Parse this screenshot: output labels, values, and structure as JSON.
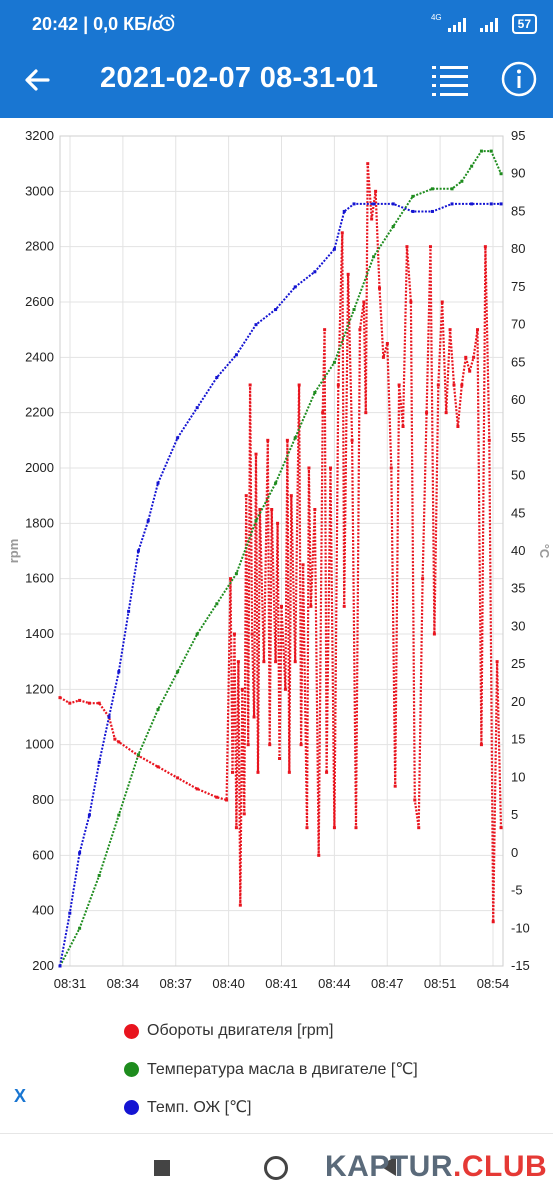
{
  "status_bar": {
    "time": "20:42",
    "speed": "| 0,0 КБ/с",
    "network": "4G",
    "battery": "57",
    "icons": [
      "alarm-icon",
      "signal-icon",
      "signal-icon",
      "battery-icon"
    ]
  },
  "app_bar": {
    "title": "2021-02-07 08-31-01",
    "icons": [
      "back-arrow-icon",
      "list-icon",
      "info-icon"
    ]
  },
  "chart_data": {
    "type": "scatter",
    "x_ticks": [
      "08:31",
      "08:34",
      "08:37",
      "08:40",
      "08:41",
      "08:44",
      "08:47",
      "08:51",
      "08:54"
    ],
    "y_left": {
      "label": "rpm",
      "min": 200,
      "max": 3200,
      "ticks": [
        200,
        400,
        600,
        800,
        1000,
        1200,
        1400,
        1600,
        1800,
        2000,
        2200,
        2400,
        2600,
        2800,
        3000,
        3200
      ]
    },
    "y_right": {
      "label": "°C",
      "min": -15,
      "max": 95,
      "ticks": [
        -15,
        -10,
        -5,
        0,
        5,
        10,
        15,
        20,
        25,
        30,
        35,
        40,
        45,
        50,
        55,
        60,
        65,
        70,
        75,
        80,
        85,
        90,
        95
      ]
    },
    "grid": true,
    "legend_position": "bottom",
    "series": [
      {
        "name": "Обороты двигателя [rpm]",
        "color": "#e8141e",
        "axis": "left",
        "points": [
          [
            0,
            1170
          ],
          [
            0.5,
            1150
          ],
          [
            1,
            1160
          ],
          [
            1.5,
            1150
          ],
          [
            2,
            1150
          ],
          [
            2.5,
            1100
          ],
          [
            2.8,
            1020
          ],
          [
            3,
            1010
          ],
          [
            4,
            960
          ],
          [
            5,
            920
          ],
          [
            6,
            880
          ],
          [
            7,
            840
          ],
          [
            8,
            810
          ],
          [
            8.5,
            800
          ],
          [
            8.7,
            1600
          ],
          [
            8.8,
            900
          ],
          [
            8.9,
            1400
          ],
          [
            9,
            700
          ],
          [
            9.1,
            1300
          ],
          [
            9.2,
            420
          ],
          [
            9.3,
            1200
          ],
          [
            9.4,
            750
          ],
          [
            9.5,
            1900
          ],
          [
            9.6,
            1000
          ],
          [
            9.7,
            2300
          ],
          [
            9.8,
            1400
          ],
          [
            9.9,
            1100
          ],
          [
            10,
            2050
          ],
          [
            10.1,
            900
          ],
          [
            10.2,
            1850
          ],
          [
            10.4,
            1300
          ],
          [
            10.6,
            2100
          ],
          [
            10.7,
            1000
          ],
          [
            10.8,
            1850
          ],
          [
            11,
            1300
          ],
          [
            11.1,
            1800
          ],
          [
            11.2,
            950
          ],
          [
            11.3,
            1500
          ],
          [
            11.5,
            1200
          ],
          [
            11.6,
            2100
          ],
          [
            11.7,
            900
          ],
          [
            11.8,
            1900
          ],
          [
            12,
            1300
          ],
          [
            12.2,
            2300
          ],
          [
            12.3,
            1000
          ],
          [
            12.4,
            1650
          ],
          [
            12.6,
            700
          ],
          [
            12.7,
            2000
          ],
          [
            12.8,
            1500
          ],
          [
            13,
            1850
          ],
          [
            13.2,
            600
          ],
          [
            13.4,
            2200
          ],
          [
            13.5,
            2500
          ],
          [
            13.6,
            900
          ],
          [
            13.8,
            2000
          ],
          [
            14,
            700
          ],
          [
            14.2,
            2300
          ],
          [
            14.4,
            2850
          ],
          [
            14.5,
            1500
          ],
          [
            14.7,
            2700
          ],
          [
            14.9,
            2100
          ],
          [
            15.1,
            700
          ],
          [
            15.3,
            2500
          ],
          [
            15.5,
            2600
          ],
          [
            15.6,
            2200
          ],
          [
            15.7,
            3100
          ],
          [
            15.9,
            2900
          ],
          [
            16.1,
            3000
          ],
          [
            16.3,
            2650
          ],
          [
            16.5,
            2400
          ],
          [
            16.7,
            2450
          ],
          [
            16.9,
            2000
          ],
          [
            17.1,
            850
          ],
          [
            17.3,
            2300
          ],
          [
            17.5,
            2150
          ],
          [
            17.7,
            2800
          ],
          [
            17.9,
            2600
          ],
          [
            18.1,
            800
          ],
          [
            18.3,
            700
          ],
          [
            18.5,
            1600
          ],
          [
            18.7,
            2200
          ],
          [
            18.9,
            2800
          ],
          [
            19.1,
            1400
          ],
          [
            19.3,
            2300
          ],
          [
            19.5,
            2600
          ],
          [
            19.7,
            2200
          ],
          [
            19.9,
            2500
          ],
          [
            20.1,
            2300
          ],
          [
            20.3,
            2150
          ],
          [
            20.5,
            2300
          ],
          [
            20.7,
            2400
          ],
          [
            20.9,
            2350
          ],
          [
            21.1,
            2400
          ],
          [
            21.3,
            2500
          ],
          [
            21.5,
            1000
          ],
          [
            21.7,
            2800
          ],
          [
            21.9,
            2100
          ],
          [
            22.1,
            360
          ],
          [
            22.3,
            1300
          ],
          [
            22.5,
            700
          ]
        ]
      },
      {
        "name": "Температура масла в двигателе [°C]",
        "color": "#1e8c1e",
        "axis": "right",
        "points": [
          [
            0,
            -15
          ],
          [
            1,
            -10
          ],
          [
            2,
            -3
          ],
          [
            3,
            5
          ],
          [
            4,
            13
          ],
          [
            5,
            19
          ],
          [
            6,
            24
          ],
          [
            7,
            29
          ],
          [
            8,
            33
          ],
          [
            9,
            37
          ],
          [
            10,
            44
          ],
          [
            11,
            49
          ],
          [
            12,
            55
          ],
          [
            13,
            61
          ],
          [
            14,
            65
          ],
          [
            15,
            72
          ],
          [
            16,
            79
          ],
          [
            17,
            83
          ],
          [
            18,
            87
          ],
          [
            19,
            88
          ],
          [
            20,
            88
          ],
          [
            20.5,
            89
          ],
          [
            21,
            91
          ],
          [
            21.5,
            93
          ],
          [
            22,
            93
          ],
          [
            22.5,
            90
          ]
        ]
      },
      {
        "name": "Темп. ОЖ [°C]",
        "color": "#1414d2",
        "axis": "right",
        "points": [
          [
            0,
            -15
          ],
          [
            0.5,
            -8
          ],
          [
            1,
            0
          ],
          [
            1.5,
            5
          ],
          [
            2,
            12
          ],
          [
            2.5,
            18
          ],
          [
            3,
            24
          ],
          [
            3.5,
            32
          ],
          [
            4,
            40
          ],
          [
            4.5,
            44
          ],
          [
            5,
            49
          ],
          [
            6,
            55
          ],
          [
            7,
            59
          ],
          [
            8,
            63
          ],
          [
            9,
            66
          ],
          [
            10,
            70
          ],
          [
            11,
            72
          ],
          [
            12,
            75
          ],
          [
            13,
            77
          ],
          [
            14,
            80
          ],
          [
            14.5,
            85
          ],
          [
            15,
            86
          ],
          [
            16,
            86
          ],
          [
            17,
            86
          ],
          [
            18,
            85
          ],
          [
            19,
            85
          ],
          [
            20,
            86
          ],
          [
            21,
            86
          ],
          [
            22,
            86
          ],
          [
            22.5,
            86
          ]
        ]
      }
    ]
  },
  "legend": [
    {
      "label": "Обороты двигателя [rpm]",
      "color": "#e8141e"
    },
    {
      "label": "Температура масла в двигателе [℃]",
      "color": "#1e8c1e"
    },
    {
      "label": "Темп. ОЖ [℃]",
      "color": "#1414d2"
    }
  ],
  "bottom": {
    "x_label": "X"
  },
  "watermark": {
    "part1": "KAPTUR",
    "part2": ".CLUB"
  }
}
